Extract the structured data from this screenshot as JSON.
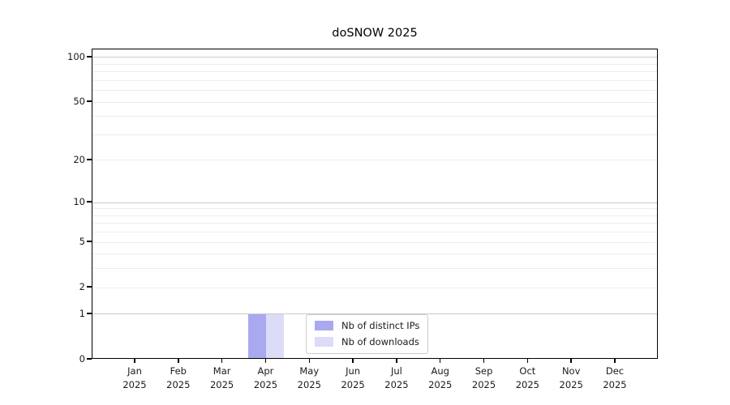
{
  "figure": {
    "title": "doSNOW 2025"
  },
  "chart_data": {
    "type": "bar",
    "title": "doSNOW 2025",
    "x_categories": [
      "Jan\n2025",
      "Feb\n2025",
      "Mar\n2025",
      "Apr\n2025",
      "May\n2025",
      "Jun\n2025",
      "Jul\n2025",
      "Aug\n2025",
      "Sep\n2025",
      "Oct\n2025",
      "Nov\n2025",
      "Dec\n2025"
    ],
    "series": [
      {
        "name": "Nb of distinct IPs",
        "color": "#a9a9f0",
        "values": [
          0,
          0,
          0,
          1,
          0,
          0,
          0,
          0,
          0,
          0,
          0,
          0
        ]
      },
      {
        "name": "Nb of downloads",
        "color": "#dcdcf8",
        "values": [
          0,
          0,
          0,
          1,
          0,
          0,
          0,
          0,
          0,
          0,
          0,
          0
        ]
      }
    ],
    "xlabel": "",
    "ylabel": "",
    "y_scale": "log10(v+1)",
    "ylim": [
      0,
      113
    ],
    "y_axis_ticks": [
      0,
      1,
      2,
      5,
      10,
      20,
      50,
      100
    ],
    "y_major_gridlines": [
      1,
      10,
      100
    ],
    "y_minor_gridlines": [
      2,
      3,
      4,
      5,
      6,
      7,
      8,
      9,
      20,
      30,
      40,
      50,
      60,
      70,
      80,
      90
    ],
    "grid": "horizontal",
    "legend_position": "lower center"
  },
  "colors": {
    "background": "#ffffff",
    "axis": "#000000",
    "text": "#1a1a1a",
    "grid_major": "#c9c9c9",
    "grid_minor": "#ededed",
    "legend_border": "#cccccc"
  }
}
